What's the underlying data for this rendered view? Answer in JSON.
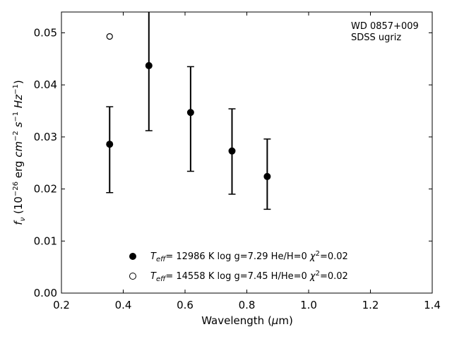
{
  "chart_data": {
    "type": "scatter",
    "title": "",
    "annotation": [
      "WD 0857+009",
      "SDSS ugriz"
    ],
    "xlabel": "Wavelength (μm)",
    "ylabel": "f_ν (10^−26 erg cm^−2 s^−1 Hz^−1)",
    "xlim": [
      0.2,
      1.4
    ],
    "ylim": [
      0.0,
      0.054
    ],
    "xticks": [
      "0.2",
      "0.4",
      "0.6",
      "0.8",
      "1.0",
      "1.2",
      "1.4"
    ],
    "yticks": [
      "0.00",
      "0.01",
      "0.02",
      "0.03",
      "0.04",
      "0.05"
    ],
    "grid": false,
    "legend_position": "bottom-center",
    "series": [
      {
        "name": "T_eff= 12986 K  log g=7.29  He/H=0  χ²=0.02",
        "marker": "filled-circle",
        "x": [
          0.356,
          0.483,
          0.618,
          0.752,
          0.866
        ],
        "y": [
          0.0286,
          0.0437,
          0.0347,
          0.0273,
          0.0224
        ],
        "yerr_low": [
          0.0193,
          0.0312,
          0.0234,
          0.019,
          0.0161
        ],
        "yerr_high": [
          0.0358,
          0.0548,
          0.0435,
          0.0354,
          0.0296
        ]
      },
      {
        "name": "T_eff= 14558 K  log g=7.45  H/He=0  χ²=0.02",
        "marker": "open-circle",
        "x": [
          0.356
        ],
        "y": [
          0.0493
        ]
      }
    ]
  }
}
